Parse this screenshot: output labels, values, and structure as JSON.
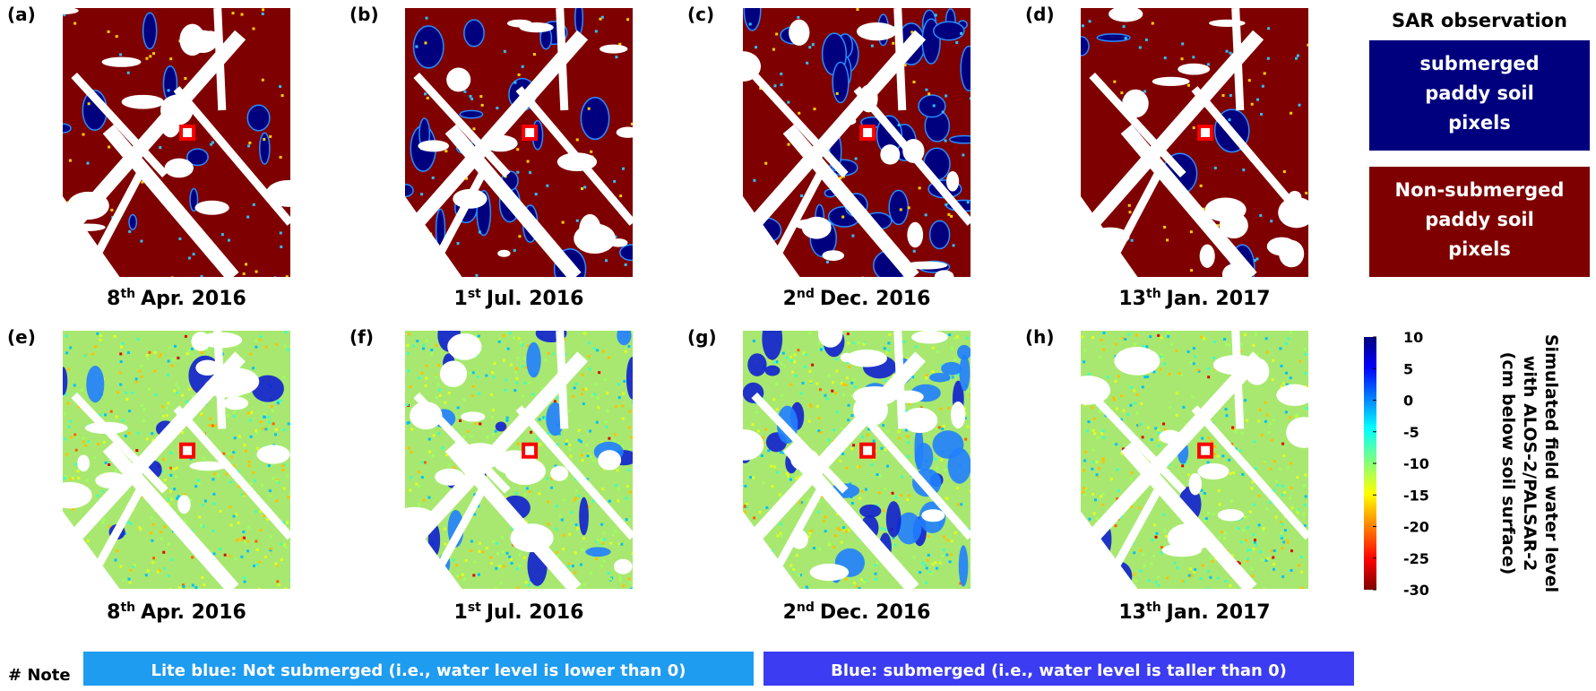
{
  "panels_top": [
    {
      "label": "(a)",
      "date": [
        "8",
        "th",
        "Apr. 2016"
      ]
    },
    {
      "label": "(b)",
      "date": [
        "1",
        "st",
        "Jul. 2016"
      ]
    },
    {
      "label": "(c)",
      "date": [
        "2",
        "nd",
        "Dec. 2016"
      ]
    },
    {
      "label": "(d)",
      "date": [
        "13",
        "th",
        "Jan. 2017"
      ]
    }
  ],
  "panels_bottom": [
    {
      "label": "(e)",
      "date": [
        "8",
        "th",
        "Apr. 2016"
      ]
    },
    {
      "label": "(f)",
      "date": [
        "1",
        "st",
        "Jul. 2016"
      ]
    },
    {
      "label": "(g)",
      "date": [
        "2",
        "nd",
        "Dec. 2016"
      ]
    },
    {
      "label": "(h)",
      "date": [
        "13",
        "th",
        "Jan. 2017"
      ]
    }
  ],
  "legend": {
    "title": "SAR observation",
    "items": [
      {
        "lines": [
          "submerged",
          "paddy soil",
          "pixels"
        ],
        "color": "#00007f"
      },
      {
        "lines": [
          "Non-submerged",
          "paddy soil",
          "pixels"
        ],
        "color": "#7f0000"
      }
    ]
  },
  "colorbar": {
    "lim": [
      -30,
      10
    ],
    "ticks": [
      10,
      5,
      0,
      -5,
      -10,
      -15,
      -20,
      -25,
      -30
    ],
    "label": [
      "Simulated field water level",
      "with  ALOS-2/PALSAR-2",
      "(cm below soil surface)"
    ]
  },
  "note": {
    "label": "# Note",
    "items": [
      {
        "text": "Lite blue: Not submerged (i.e., water level is lower than 0)",
        "color": "#1e9cf0"
      },
      {
        "text": "Blue: submerged (i.e., water level is taller than 0)",
        "color": "#3c3cf2"
      }
    ]
  }
}
